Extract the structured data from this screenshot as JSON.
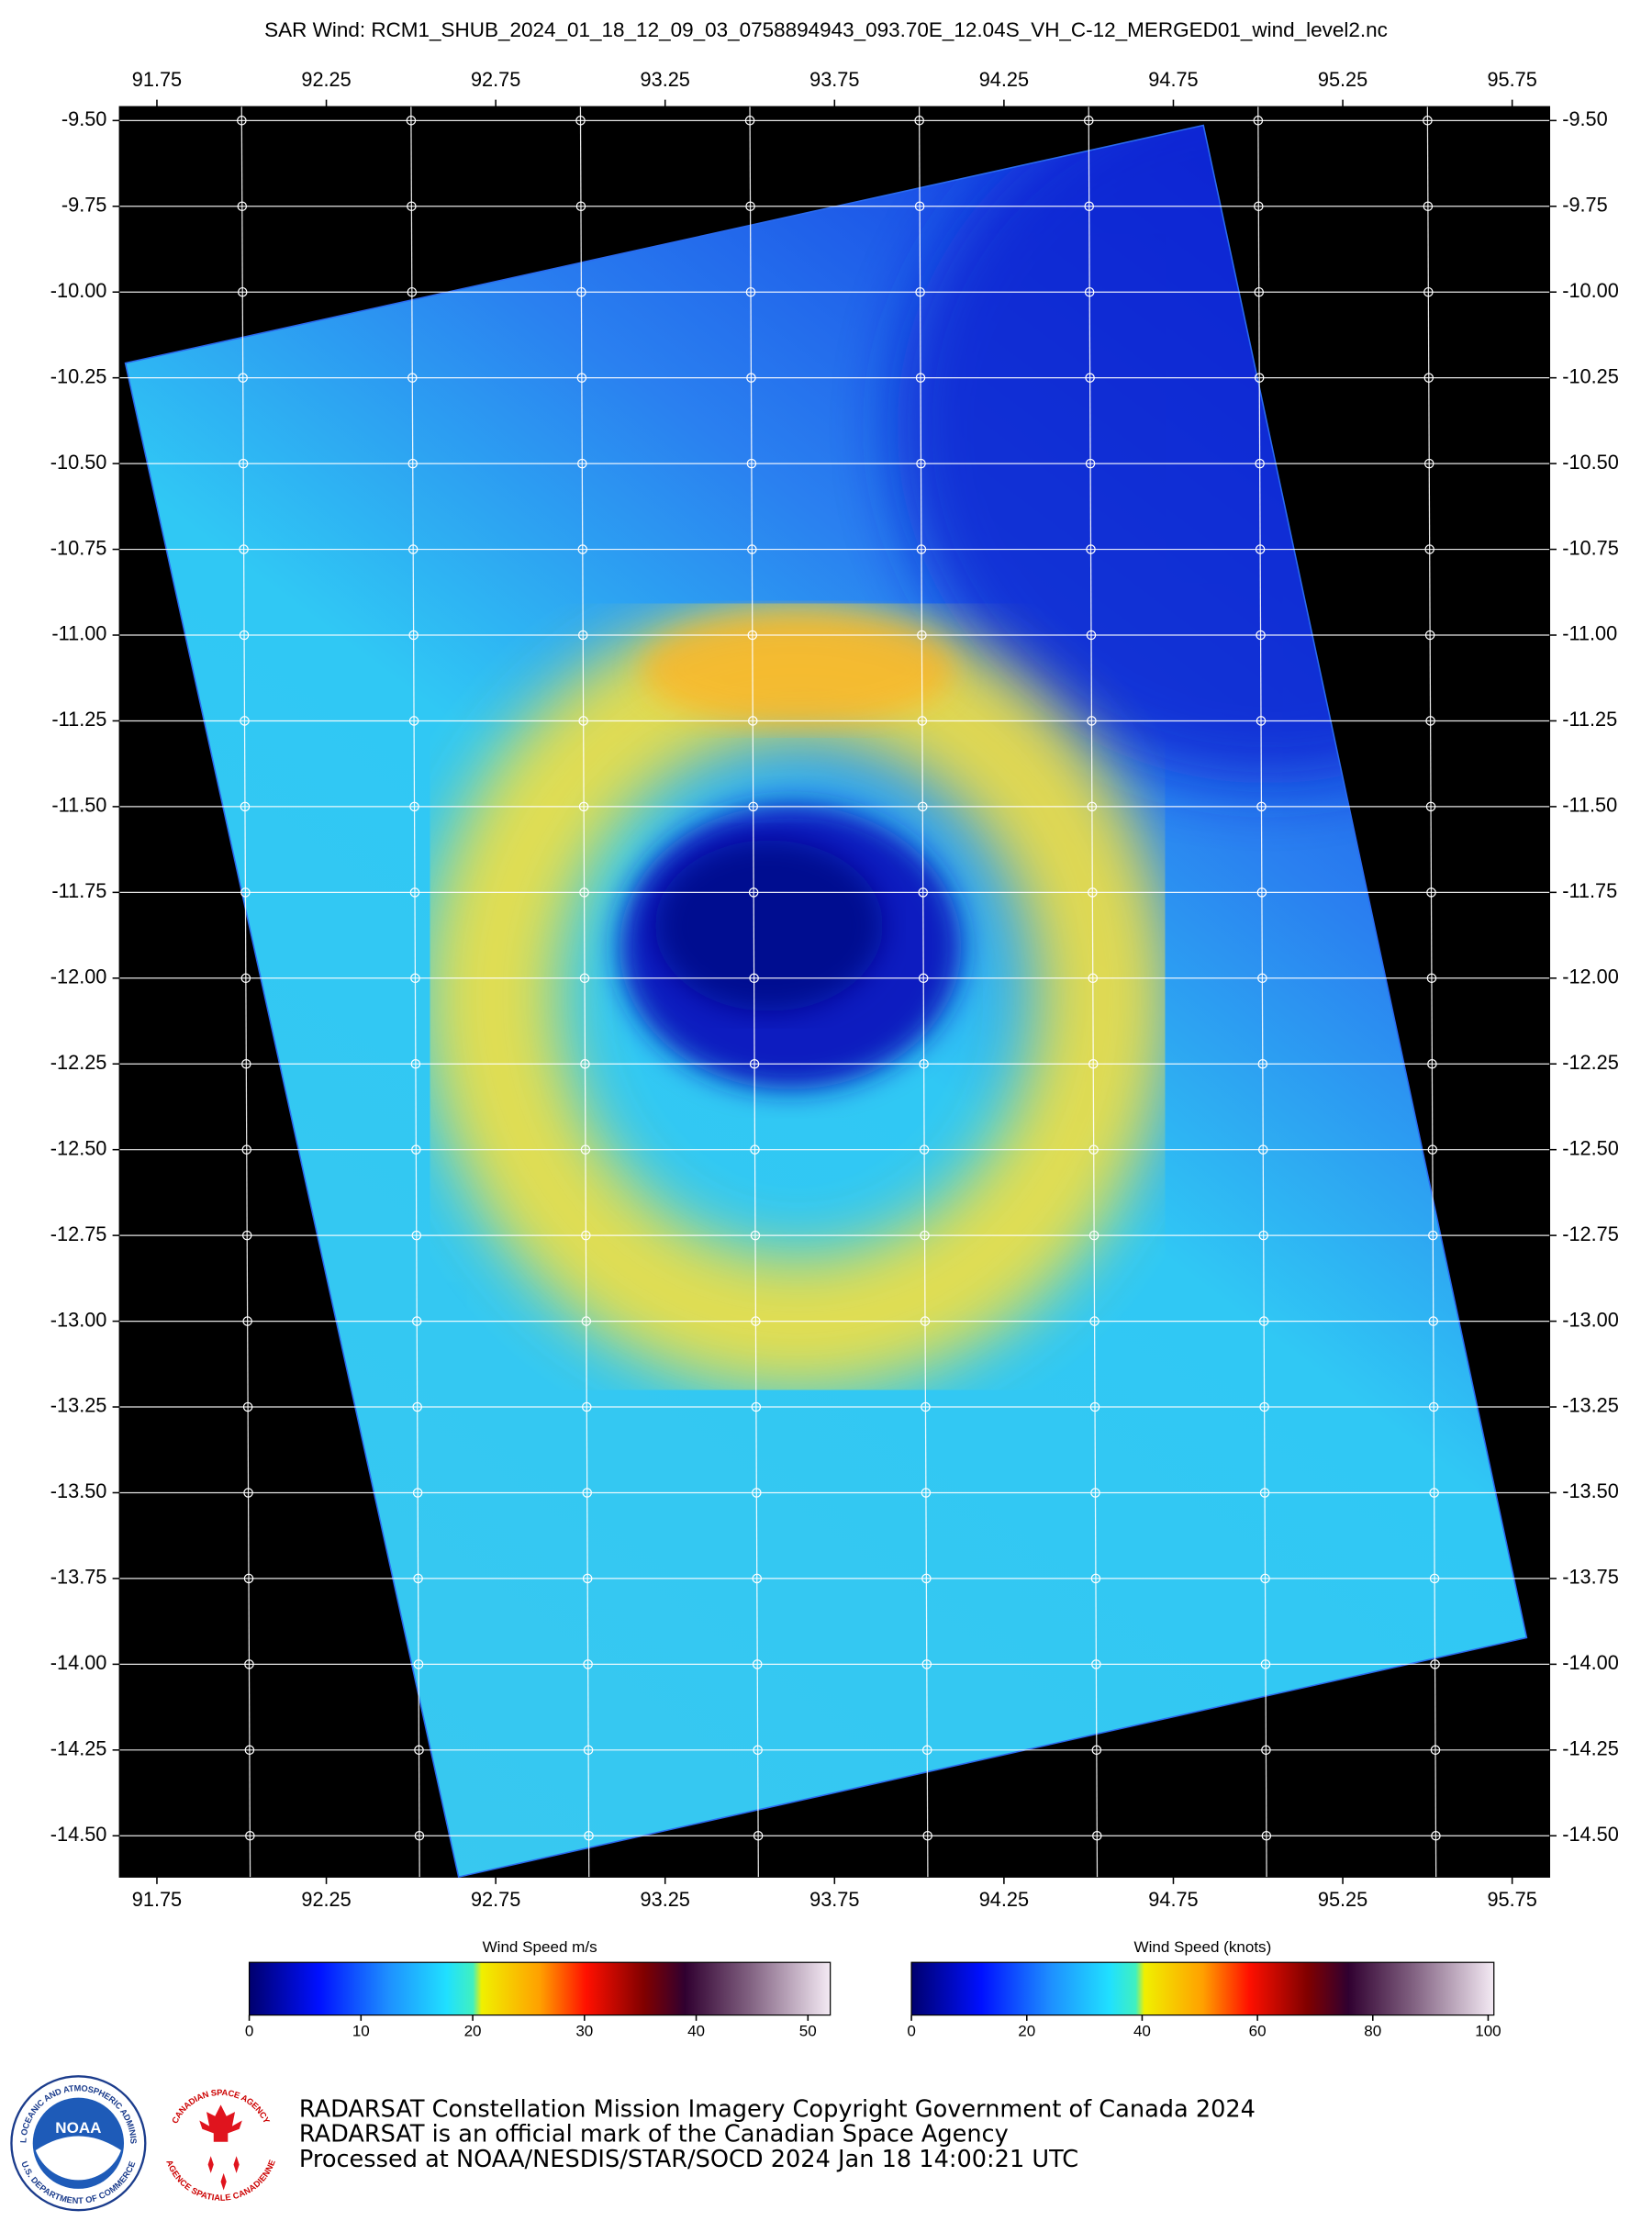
{
  "title": "SAR Wind: RCM1_SHUB_2024_01_18_12_09_03_0758894943_093.70E_12.04S_VH_C-12_MERGED01_wind_level2.nc",
  "map": {
    "xlim": [
      91.64,
      95.86
    ],
    "ylim": [
      -14.62,
      -9.46
    ],
    "xticks": [
      91.75,
      92.25,
      92.75,
      93.25,
      93.75,
      94.25,
      94.75,
      95.25,
      95.75
    ],
    "yticks": [
      {
        "value": -9.5,
        "label": "-9.50"
      },
      {
        "value": -9.75,
        "label": "-9.75"
      },
      {
        "value": -10,
        "label": "-10.00"
      },
      {
        "value": -10.25,
        "label": "-10.25"
      },
      {
        "value": -10.5,
        "label": "-10.50"
      },
      {
        "value": -10.75,
        "label": "-10.75"
      },
      {
        "value": -11,
        "label": "-11.00"
      },
      {
        "value": -11.25,
        "label": "-11.25"
      },
      {
        "value": -11.5,
        "label": "-11.50"
      },
      {
        "value": -11.75,
        "label": "-11.75"
      },
      {
        "value": -12,
        "label": "-12.00"
      },
      {
        "value": -12.25,
        "label": "-12.25"
      },
      {
        "value": -12.5,
        "label": "-12.50"
      },
      {
        "value": -12.75,
        "label": "-12.75"
      },
      {
        "value": -13,
        "label": "-13.00"
      },
      {
        "value": -13.25,
        "label": "-13.25"
      },
      {
        "value": -13.5,
        "label": "-13.50"
      },
      {
        "value": -13.75,
        "label": "-13.75"
      },
      {
        "value": -14,
        "label": "-14.00"
      },
      {
        "value": -14.25,
        "label": "-14.25"
      },
      {
        "value": -14.5,
        "label": "-14.50"
      }
    ]
  },
  "colorbars": [
    {
      "label": "Wind Speed m/s",
      "lim": [
        0,
        52
      ],
      "ticks": [
        0,
        10,
        20,
        30,
        40,
        50
      ]
    },
    {
      "label": "Wind Speed (knots)",
      "lim": [
        0,
        101
      ],
      "ticks": [
        0,
        20,
        40,
        60,
        80,
        100
      ]
    }
  ],
  "logos": {
    "noaa": {
      "center": "NOAA",
      "top": "NATIONAL OCEANIC AND ATMOSPHERIC ADMINISTRATION",
      "bottom": "U.S. DEPARTMENT OF COMMERCE"
    },
    "csa": {
      "top": "CANADIAN SPACE AGENCY",
      "bottom": "AGENCE SPATIALE CANADIENNE"
    }
  },
  "credits": [
    "RADARSAT Constellation Mission Imagery Copyright Government of Canada 2024",
    "RADARSAT is an official mark of the Canadian Space Agency",
    "Processed at NOAA/NESDIS/STAR/SOCD 2024 Jan 18 14:00:21 UTC"
  ]
}
